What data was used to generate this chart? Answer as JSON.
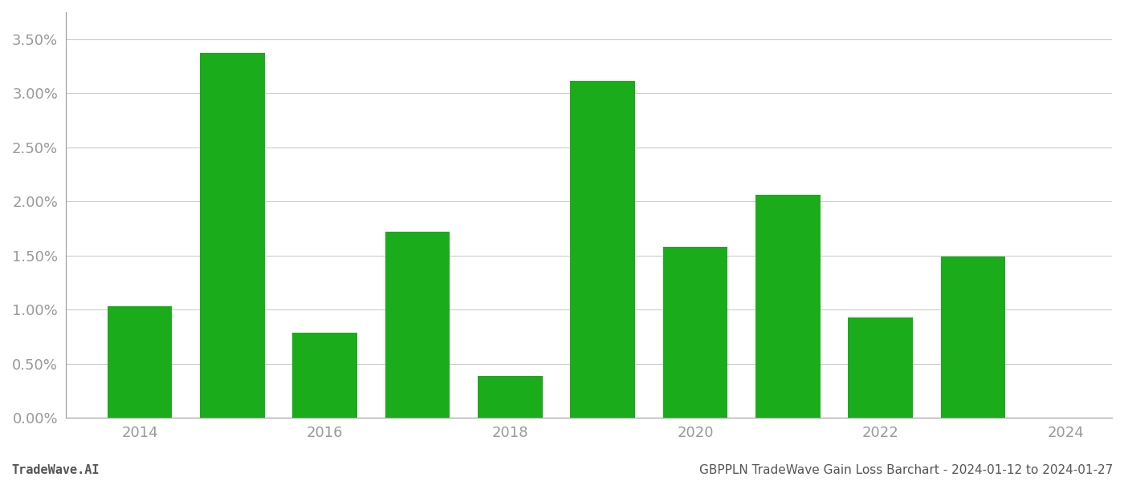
{
  "years": [
    2014,
    2015,
    2016,
    2017,
    2018,
    2019,
    2020,
    2021,
    2022,
    2023
  ],
  "values": [
    0.0103,
    0.0337,
    0.0079,
    0.0172,
    0.0039,
    0.0311,
    0.0158,
    0.0206,
    0.0093,
    0.0149
  ],
  "bar_color": "#1aac1a",
  "ylim": [
    0,
    0.0375
  ],
  "yticks": [
    0.0,
    0.005,
    0.01,
    0.015,
    0.02,
    0.025,
    0.03,
    0.035
  ],
  "ytick_labels": [
    "0.00%",
    "0.50%",
    "1.00%",
    "1.50%",
    "2.00%",
    "2.50%",
    "3.00%",
    "3.50%"
  ],
  "xtick_positions": [
    2014,
    2016,
    2018,
    2020,
    2022,
    2024
  ],
  "xtick_labels": [
    "2014",
    "2016",
    "2018",
    "2020",
    "2022",
    "2024"
  ],
  "bar_width": 0.7,
  "grid_color": "#cccccc",
  "background_color": "#ffffff",
  "footer_left": "TradeWave.AI",
  "footer_right": "GBPPLN TradeWave Gain Loss Barchart - 2024-01-12 to 2024-01-27",
  "footer_fontsize": 11,
  "tick_label_color": "#999999",
  "spine_color": "#999999",
  "xlim_left": 2013.2,
  "xlim_right": 2024.5
}
